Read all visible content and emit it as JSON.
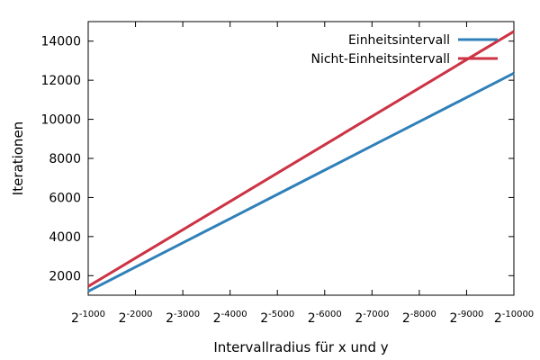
{
  "chart_data": {
    "type": "line",
    "xlabel": "Intervallradius für x und y",
    "ylabel": "Iterationen",
    "x_ticks": [
      1000,
      2000,
      3000,
      4000,
      5000,
      6000,
      7000,
      8000,
      9000,
      10000
    ],
    "x_tick_labels": [
      {
        "base": "2",
        "exp": "-1000"
      },
      {
        "base": "2",
        "exp": "-2000"
      },
      {
        "base": "2",
        "exp": "-3000"
      },
      {
        "base": "2",
        "exp": "-4000"
      },
      {
        "base": "2",
        "exp": "-5000"
      },
      {
        "base": "2",
        "exp": "-6000"
      },
      {
        "base": "2",
        "exp": "-7000"
      },
      {
        "base": "2",
        "exp": "-8000"
      },
      {
        "base": "2",
        "exp": "-9000"
      },
      {
        "base": "2",
        "exp": "-10000"
      }
    ],
    "y_ticks": [
      2000,
      4000,
      6000,
      8000,
      10000,
      12000,
      14000
    ],
    "y_tick_labels": [
      "2000",
      "4000",
      "6000",
      "8000",
      "10000",
      "12000",
      "14000"
    ],
    "xlim": [
      1000,
      10000
    ],
    "ylim": [
      1000,
      15000
    ],
    "grid": false,
    "legend_position": "top-right",
    "series": [
      {
        "name": "Einheitsintervall",
        "color": "#2f80b9",
        "x": [
          1000,
          2000,
          3000,
          4000,
          5000,
          6000,
          7000,
          8000,
          9000,
          10000
        ],
        "y": [
          1200,
          2440,
          3680,
          4920,
          6160,
          7400,
          8640,
          9880,
          11120,
          12360
        ]
      },
      {
        "name": "Nicht-Einheitsintervall",
        "color": "#cc3344",
        "x": [
          1000,
          2000,
          3000,
          4000,
          5000,
          6000,
          7000,
          8000,
          9000,
          10000
        ],
        "y": [
          1450,
          2900,
          4350,
          5800,
          7250,
          8700,
          10150,
          11600,
          13050,
          14500
        ]
      }
    ]
  }
}
